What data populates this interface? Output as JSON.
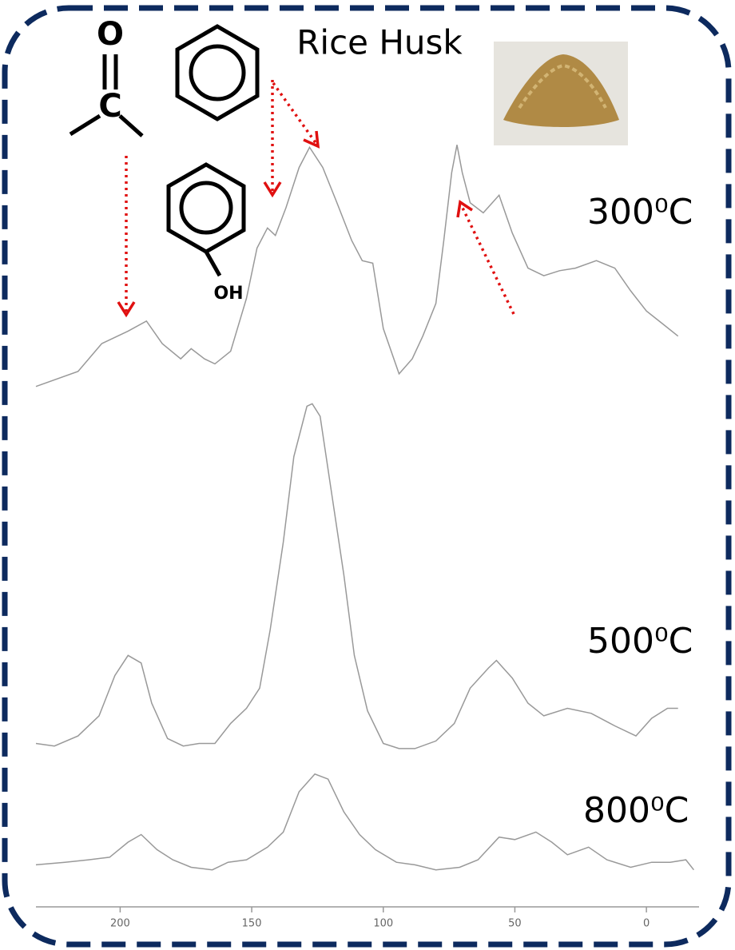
{
  "chart_data": [
    {
      "type": "line",
      "label": "300⁰C",
      "color": "#999999",
      "xlim": [
        232,
        -20
      ],
      "ylim": [
        0,
        100
      ],
      "annotations": [
        "Rice Husk",
        "O",
        "C",
        "OH"
      ],
      "x": [
        232,
        216,
        207,
        197,
        190,
        184,
        177,
        173,
        168,
        164,
        158,
        152,
        148,
        144,
        141,
        137,
        132,
        128,
        123,
        118,
        112,
        108,
        104,
        100,
        94,
        89,
        85,
        80,
        77,
        74,
        72,
        70,
        67,
        62,
        56,
        51,
        45,
        39,
        33,
        27,
        19,
        12,
        6,
        0,
        -6,
        -12
      ],
      "values": [
        2,
        8,
        19,
        24,
        28,
        19,
        13,
        17,
        13,
        11,
        16,
        37,
        57,
        65,
        62,
        73,
        89,
        97,
        89,
        76,
        60,
        52,
        51,
        25,
        7,
        13,
        22,
        35,
        60,
        87,
        98,
        87,
        75,
        71,
        78,
        63,
        49,
        46,
        48,
        49,
        52,
        49,
        40,
        32,
        27,
        22
      ]
    },
    {
      "type": "line",
      "label": "500⁰C",
      "color": "#999999",
      "xlim": [
        232,
        -20
      ],
      "ylim": [
        0,
        140
      ],
      "x": [
        232,
        225,
        216,
        208,
        202,
        197,
        192,
        188,
        182,
        176,
        170,
        164,
        158,
        152,
        147,
        143,
        138,
        134,
        129,
        127,
        124,
        120,
        115,
        111,
        106,
        100,
        94,
        88,
        80,
        73,
        67,
        60,
        57,
        51,
        45,
        39,
        30,
        21,
        12,
        4,
        -2,
        -8,
        -12
      ],
      "values": [
        3,
        2,
        6,
        14,
        30,
        38,
        35,
        19,
        5,
        2,
        3,
        3,
        11,
        17,
        25,
        48,
        83,
        117,
        137,
        138,
        133,
        105,
        70,
        38,
        16,
        3,
        1,
        1,
        4,
        11,
        25,
        33,
        36,
        29,
        19,
        14,
        17,
        15,
        10,
        6,
        13,
        17,
        17
      ]
    },
    {
      "type": "line",
      "label": "800⁰C",
      "color": "#999999",
      "xlim": [
        232,
        -20
      ],
      "ylim": [
        0,
        45
      ],
      "xticks": [
        200,
        150,
        100,
        50,
        0
      ],
      "x": [
        232,
        221,
        212,
        204,
        197,
        192,
        186,
        180,
        173,
        165,
        159,
        152,
        144,
        138,
        132,
        126,
        121,
        115,
        109,
        103,
        95,
        88,
        80,
        71,
        64,
        56,
        50,
        42,
        36,
        30,
        22,
        15,
        6,
        -2,
        -9,
        -15,
        -18
      ],
      "values": [
        4,
        5,
        6,
        7,
        13,
        16,
        10,
        6,
        3,
        2,
        5,
        6,
        11,
        17,
        33,
        40,
        38,
        25,
        16,
        10,
        5,
        4,
        2,
        3,
        6,
        15,
        14,
        17,
        13,
        8,
        11,
        6,
        3,
        5,
        5,
        6,
        2
      ]
    }
  ]
}
